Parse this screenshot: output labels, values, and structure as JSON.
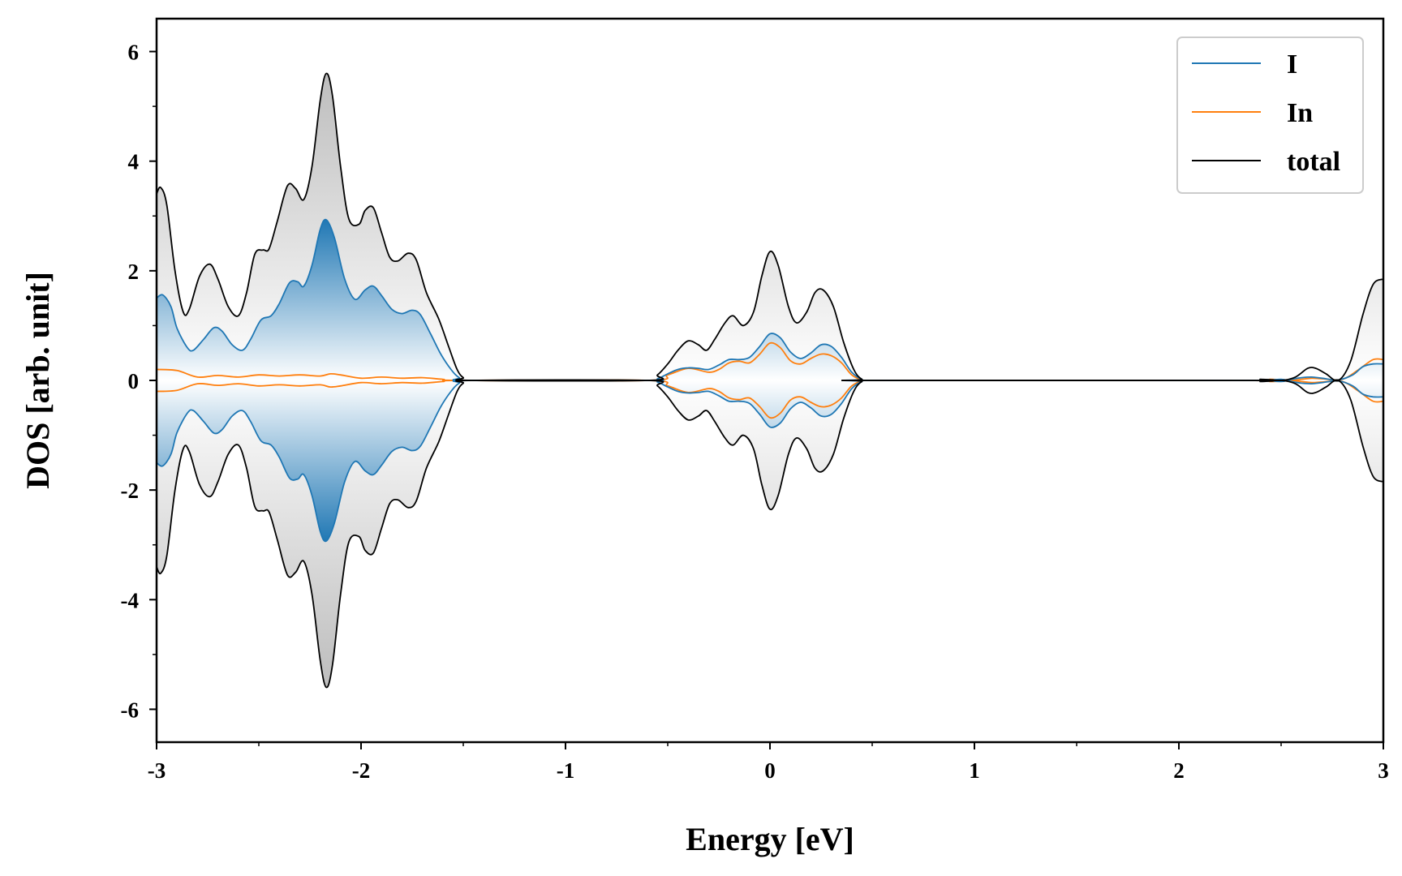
{
  "chart_data": {
    "type": "area",
    "xlabel": "Energy [eV]",
    "ylabel": "DOS [arb. unit]",
    "xlim": [
      -3,
      3
    ],
    "ylim": [
      -6.6,
      6.6
    ],
    "x_ticks": [
      -3,
      -2,
      -1,
      0,
      1,
      2,
      3
    ],
    "x_tick_labels": [
      "-3",
      "-2",
      "-1",
      "0",
      "1",
      "2",
      "3"
    ],
    "x_minor_ticks": [
      -2.5,
      -1.5,
      -0.5,
      0.5,
      1.5,
      2.5
    ],
    "y_ticks": [
      -6,
      -4,
      -2,
      0,
      2,
      4,
      6
    ],
    "y_tick_labels": [
      "-6",
      "-4",
      "-2",
      "0",
      "2",
      "4",
      "6"
    ],
    "y_minor_ticks": [
      -5,
      -3,
      -1,
      1,
      3,
      5
    ],
    "grid": false,
    "legend_position": "top-right",
    "mirrored_about_zero": true,
    "series": [
      {
        "name": "I",
        "color": "#1f77b4",
        "fill": "blue-gradient",
        "points": [
          [
            -3.0,
            1.5
          ],
          [
            -2.97,
            1.56
          ],
          [
            -2.93,
            1.35
          ],
          [
            -2.9,
            0.95
          ],
          [
            -2.85,
            0.6
          ],
          [
            -2.82,
            0.55
          ],
          [
            -2.77,
            0.75
          ],
          [
            -2.72,
            0.96
          ],
          [
            -2.68,
            0.9
          ],
          [
            -2.63,
            0.65
          ],
          [
            -2.58,
            0.55
          ],
          [
            -2.54,
            0.75
          ],
          [
            -2.49,
            1.1
          ],
          [
            -2.44,
            1.18
          ],
          [
            -2.4,
            1.4
          ],
          [
            -2.35,
            1.78
          ],
          [
            -2.31,
            1.8
          ],
          [
            -2.28,
            1.72
          ],
          [
            -2.24,
            2.1
          ],
          [
            -2.2,
            2.75
          ],
          [
            -2.17,
            2.93
          ],
          [
            -2.13,
            2.6
          ],
          [
            -2.08,
            1.85
          ],
          [
            -2.03,
            1.48
          ],
          [
            -1.98,
            1.65
          ],
          [
            -1.94,
            1.72
          ],
          [
            -1.9,
            1.55
          ],
          [
            -1.85,
            1.3
          ],
          [
            -1.8,
            1.22
          ],
          [
            -1.75,
            1.28
          ],
          [
            -1.71,
            1.2
          ],
          [
            -1.66,
            0.85
          ],
          [
            -1.61,
            0.48
          ],
          [
            -1.56,
            0.2
          ],
          [
            -1.52,
            0.05
          ],
          [
            -1.47,
            0.0
          ],
          [
            -0.6,
            0.0
          ],
          [
            -0.55,
            0.03
          ],
          [
            -0.5,
            0.12
          ],
          [
            -0.45,
            0.2
          ],
          [
            -0.4,
            0.23
          ],
          [
            -0.35,
            0.22
          ],
          [
            -0.3,
            0.2
          ],
          [
            -0.25,
            0.28
          ],
          [
            -0.2,
            0.38
          ],
          [
            -0.15,
            0.38
          ],
          [
            -0.1,
            0.42
          ],
          [
            -0.05,
            0.62
          ],
          [
            0.0,
            0.85
          ],
          [
            0.05,
            0.78
          ],
          [
            0.1,
            0.52
          ],
          [
            0.15,
            0.4
          ],
          [
            0.2,
            0.5
          ],
          [
            0.25,
            0.65
          ],
          [
            0.3,
            0.62
          ],
          [
            0.35,
            0.42
          ],
          [
            0.4,
            0.15
          ],
          [
            0.45,
            0.02
          ],
          [
            0.5,
            0.0
          ],
          [
            2.3,
            0.0
          ],
          [
            2.4,
            0.01
          ],
          [
            2.5,
            -0.02
          ],
          [
            2.55,
            0.02
          ],
          [
            2.6,
            0.05
          ],
          [
            2.65,
            0.06
          ],
          [
            2.7,
            0.04
          ],
          [
            2.78,
            0.01
          ],
          [
            2.85,
            0.1
          ],
          [
            2.9,
            0.25
          ],
          [
            2.95,
            0.3
          ],
          [
            3.0,
            0.3
          ]
        ]
      },
      {
        "name": "In",
        "color": "#ff7f0e",
        "fill": "none",
        "points": [
          [
            -3.0,
            0.2
          ],
          [
            -2.9,
            0.18
          ],
          [
            -2.8,
            0.06
          ],
          [
            -2.7,
            0.09
          ],
          [
            -2.6,
            0.06
          ],
          [
            -2.5,
            0.1
          ],
          [
            -2.4,
            0.08
          ],
          [
            -2.3,
            0.1
          ],
          [
            -2.2,
            0.08
          ],
          [
            -2.15,
            0.12
          ],
          [
            -2.1,
            0.1
          ],
          [
            -2.0,
            0.04
          ],
          [
            -1.9,
            0.06
          ],
          [
            -1.8,
            0.04
          ],
          [
            -1.7,
            0.05
          ],
          [
            -1.6,
            0.02
          ],
          [
            -1.5,
            0.0
          ],
          [
            -0.6,
            0.0
          ],
          [
            -0.5,
            0.1
          ],
          [
            -0.4,
            0.22
          ],
          [
            -0.3,
            0.15
          ],
          [
            -0.25,
            0.2
          ],
          [
            -0.2,
            0.32
          ],
          [
            -0.15,
            0.35
          ],
          [
            -0.1,
            0.32
          ],
          [
            -0.05,
            0.48
          ],
          [
            0.0,
            0.68
          ],
          [
            0.05,
            0.6
          ],
          [
            0.1,
            0.36
          ],
          [
            0.15,
            0.3
          ],
          [
            0.2,
            0.4
          ],
          [
            0.25,
            0.48
          ],
          [
            0.3,
            0.45
          ],
          [
            0.35,
            0.32
          ],
          [
            0.4,
            0.1
          ],
          [
            0.45,
            0.01
          ],
          [
            0.5,
            0.0
          ],
          [
            2.3,
            0.0
          ],
          [
            2.45,
            0.02
          ],
          [
            2.55,
            0.0
          ],
          [
            2.6,
            0.02
          ],
          [
            2.65,
            0.04
          ],
          [
            2.7,
            0.03
          ],
          [
            2.8,
            0.02
          ],
          [
            2.88,
            0.2
          ],
          [
            2.95,
            0.38
          ],
          [
            3.0,
            0.38
          ]
        ]
      },
      {
        "name": "total",
        "color": "#000000",
        "fill": "gray-gradient",
        "points": [
          [
            -3.0,
            3.4
          ],
          [
            -2.98,
            3.52
          ],
          [
            -2.95,
            3.2
          ],
          [
            -2.91,
            2.0
          ],
          [
            -2.87,
            1.25
          ],
          [
            -2.84,
            1.3
          ],
          [
            -2.79,
            1.9
          ],
          [
            -2.74,
            2.12
          ],
          [
            -2.7,
            1.85
          ],
          [
            -2.65,
            1.35
          ],
          [
            -2.6,
            1.18
          ],
          [
            -2.56,
            1.6
          ],
          [
            -2.52,
            2.3
          ],
          [
            -2.48,
            2.38
          ],
          [
            -2.45,
            2.4
          ],
          [
            -2.41,
            2.9
          ],
          [
            -2.36,
            3.55
          ],
          [
            -2.32,
            3.5
          ],
          [
            -2.28,
            3.3
          ],
          [
            -2.24,
            3.9
          ],
          [
            -2.2,
            5.1
          ],
          [
            -2.17,
            5.6
          ],
          [
            -2.14,
            5.2
          ],
          [
            -2.1,
            3.9
          ],
          [
            -2.06,
            2.95
          ],
          [
            -2.01,
            2.85
          ],
          [
            -1.98,
            3.1
          ],
          [
            -1.94,
            3.15
          ],
          [
            -1.9,
            2.7
          ],
          [
            -1.86,
            2.25
          ],
          [
            -1.82,
            2.18
          ],
          [
            -1.77,
            2.32
          ],
          [
            -1.73,
            2.2
          ],
          [
            -1.68,
            1.6
          ],
          [
            -1.62,
            1.12
          ],
          [
            -1.57,
            0.6
          ],
          [
            -1.53,
            0.2
          ],
          [
            -1.5,
            0.05
          ],
          [
            -1.46,
            0.0
          ],
          [
            -0.6,
            0.0
          ],
          [
            -0.55,
            0.1
          ],
          [
            -0.5,
            0.3
          ],
          [
            -0.45,
            0.55
          ],
          [
            -0.4,
            0.72
          ],
          [
            -0.35,
            0.65
          ],
          [
            -0.31,
            0.55
          ],
          [
            -0.27,
            0.75
          ],
          [
            -0.22,
            1.05
          ],
          [
            -0.18,
            1.18
          ],
          [
            -0.13,
            1.0
          ],
          [
            -0.08,
            1.25
          ],
          [
            -0.04,
            1.9
          ],
          [
            0.0,
            2.35
          ],
          [
            0.04,
            2.1
          ],
          [
            0.09,
            1.35
          ],
          [
            0.13,
            1.05
          ],
          [
            0.18,
            1.25
          ],
          [
            0.22,
            1.6
          ],
          [
            0.26,
            1.65
          ],
          [
            0.31,
            1.35
          ],
          [
            0.36,
            0.7
          ],
          [
            0.41,
            0.2
          ],
          [
            0.45,
            0.02
          ],
          [
            0.5,
            0.0
          ],
          [
            2.3,
            0.0
          ],
          [
            2.4,
            0.02
          ],
          [
            2.5,
            0.0
          ],
          [
            2.57,
            0.06
          ],
          [
            2.63,
            0.22
          ],
          [
            2.67,
            0.22
          ],
          [
            2.72,
            0.12
          ],
          [
            2.78,
            0.0
          ],
          [
            2.84,
            0.35
          ],
          [
            2.9,
            1.2
          ],
          [
            2.95,
            1.75
          ],
          [
            3.0,
            1.85
          ]
        ]
      }
    ]
  }
}
